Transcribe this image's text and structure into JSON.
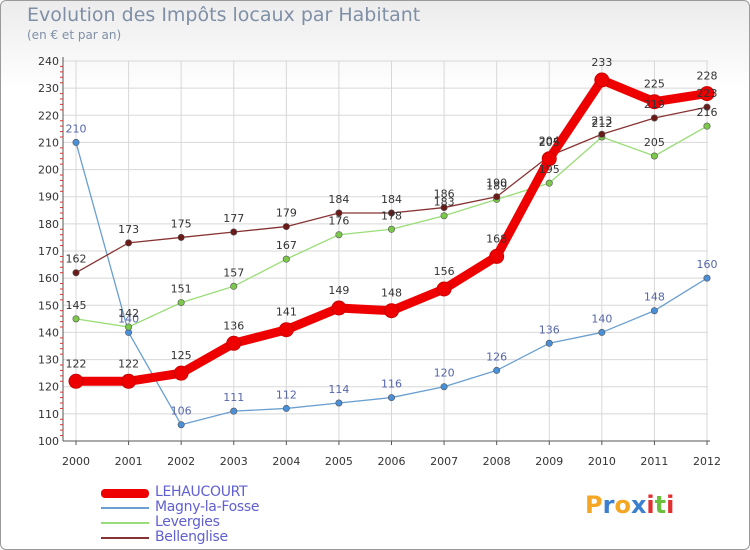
{
  "title": "Evolution des Impôts locaux par Habitant",
  "subtitle": "(en € et par an)",
  "logo": {
    "letters": [
      "P",
      "r",
      "o",
      "x",
      "i",
      "t",
      "i"
    ],
    "colors": [
      "#f5a623",
      "#3a7fd0",
      "#f5a623",
      "#3a7fd0",
      "#e03030",
      "#6cbf3c",
      "#e03030"
    ]
  },
  "chart_data": {
    "type": "line",
    "title": "Evolution des Impôts locaux par Habitant",
    "ylabel": "(en € et par an)",
    "ylim": [
      100,
      240
    ],
    "yticks": [
      "100",
      "110",
      "120",
      "130",
      "140",
      "150",
      "160",
      "170",
      "180",
      "190",
      "200",
      "210",
      "220",
      "230",
      "240"
    ],
    "x": [
      "2000",
      "2001",
      "2002",
      "2003",
      "2004",
      "2005",
      "2006",
      "2007",
      "2008",
      "2009",
      "2010",
      "2011",
      "2012"
    ],
    "grid": true,
    "legend_position": "bottom-left",
    "series": [
      {
        "name": "LEHAUCOURT",
        "color": "#ee0000",
        "marker_color": "#ee0000",
        "label_color": "#333333",
        "values": [
          122,
          122,
          125,
          136,
          141,
          149,
          148,
          156,
          168,
          204,
          233,
          225,
          228
        ],
        "labels": [
          "122",
          "122",
          "125",
          "136",
          "141",
          "149",
          "148",
          "156",
          "168",
          "204",
          "233",
          "225",
          "228"
        ]
      },
      {
        "name": "Magny-la-Fosse",
        "color": "#6a9fd0",
        "marker_color": "#4a90d9",
        "label_color": "#5566aa",
        "values": [
          210,
          140,
          106,
          111,
          112,
          114,
          116,
          120,
          126,
          136,
          140,
          148,
          160
        ],
        "labels": [
          "210",
          "140",
          "106",
          "111",
          "112",
          "114",
          "116",
          "120",
          "126",
          "136",
          "140",
          "148",
          "160"
        ]
      },
      {
        "name": "Levergies",
        "color": "#99dd77",
        "marker_color": "#7cc84a",
        "label_color": "#333333",
        "values": [
          145,
          142,
          151,
          157,
          167,
          176,
          178,
          183,
          189,
          195,
          212,
          205,
          216
        ],
        "labels": [
          "145",
          "142",
          "151",
          "157",
          "167",
          "176",
          "178",
          "183",
          "189",
          "195",
          "212",
          "205",
          "216"
        ]
      },
      {
        "name": "Bellenglise",
        "color": "#883333",
        "marker_color": "#6b1a1a",
        "label_color": "#333333",
        "values": [
          162,
          173,
          175,
          177,
          179,
          184,
          184,
          186,
          190,
          205,
          213,
          219,
          223
        ],
        "labels": [
          "162",
          "173",
          "175",
          "177",
          "179",
          "184",
          "184",
          "186",
          "190",
          "205",
          "213",
          "219",
          "223"
        ]
      }
    ]
  }
}
